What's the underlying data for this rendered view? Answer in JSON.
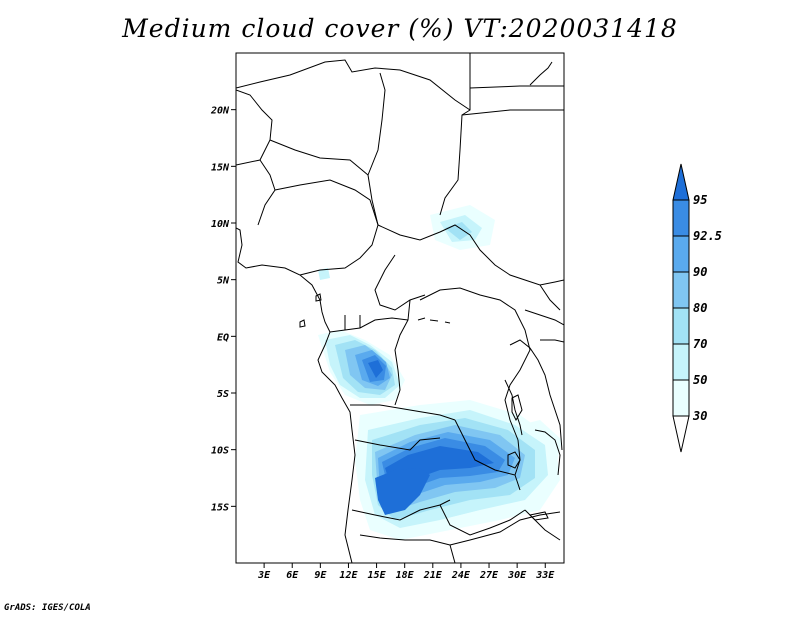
{
  "title": "Medium cloud cover (%) VT:2020031418",
  "credit": "GrADS: IGES/COLA",
  "chart_data": {
    "type": "heatmap",
    "map_extent": {
      "lon": [
        0,
        35
      ],
      "lat": [
        -20,
        25
      ]
    },
    "x_ticks": [
      "3E",
      "6E",
      "9E",
      "12E",
      "15E",
      "18E",
      "21E",
      "24E",
      "27E",
      "30E",
      "33E"
    ],
    "x_tick_values": [
      3,
      6,
      9,
      12,
      15,
      18,
      21,
      24,
      27,
      30,
      33
    ],
    "y_ticks": [
      "20N",
      "15N",
      "10N",
      "5N",
      "EQ",
      "5S",
      "10S",
      "15S"
    ],
    "y_tick_values": [
      20,
      15,
      10,
      5,
      0,
      -5,
      -10,
      -15
    ],
    "colorbar": {
      "levels": [
        "30",
        "50",
        "70",
        "80",
        "90",
        "92.5",
        "95"
      ],
      "colors": [
        "#eaffff",
        "#c6f4fb",
        "#a2e2f5",
        "#80c6f2",
        "#5aaaee",
        "#3a8ce4",
        "#1e6fd8"
      ]
    }
  }
}
